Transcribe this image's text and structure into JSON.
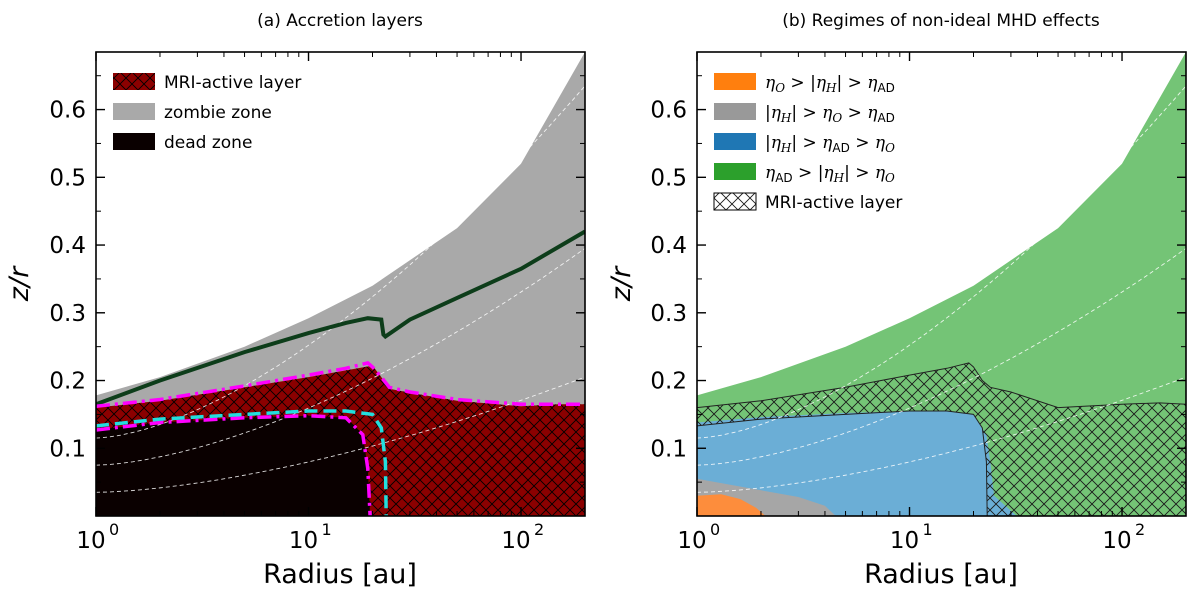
{
  "chart_data": [
    {
      "type": "area",
      "title": "(a) Accretion layers",
      "xlabel": "Radius [au]",
      "ylabel": "z/r",
      "xscale": "log",
      "xlim": [
        1,
        200
      ],
      "ylim": [
        0,
        0.685
      ],
      "x_ticks": [
        {
          "value": 1,
          "label": "10",
          "exp": "0"
        },
        {
          "value": 10,
          "label": "10",
          "exp": "1"
        },
        {
          "value": 100,
          "label": "10",
          "exp": "2"
        }
      ],
      "y_ticks": [
        {
          "value": 0.1,
          "label": "0.1"
        },
        {
          "value": 0.2,
          "label": "0.2"
        },
        {
          "value": 0.3,
          "label": "0.3"
        },
        {
          "value": 0.4,
          "label": "0.4"
        },
        {
          "value": 0.5,
          "label": "0.5"
        },
        {
          "value": 0.6,
          "label": "0.6"
        }
      ],
      "legend": {
        "position": "top-left",
        "entries": [
          {
            "label": "MRI-active layer",
            "color": "#8b0000",
            "hatch": true
          },
          {
            "label": "zombie zone",
            "color": "#a9a9a9"
          },
          {
            "label": "dead zone",
            "color": "#0a0000"
          }
        ]
      },
      "series": [
        {
          "name": "disk surface (grey zombie zone top)",
          "color": "#a9a9a9",
          "x": [
            1,
            2,
            5,
            10,
            20,
            50,
            100,
            200
          ],
          "y": [
            0.178,
            0.205,
            0.25,
            0.292,
            0.34,
            0.425,
            0.52,
            0.685
          ]
        },
        {
          "name": "MRI-active layer top",
          "color": "#8b0000",
          "x": [
            1,
            2,
            5,
            10,
            15,
            20,
            22,
            24,
            30,
            50,
            100,
            150,
            200
          ],
          "y": [
            0.16,
            0.17,
            0.19,
            0.205,
            0.215,
            0.222,
            0.205,
            0.188,
            0.182,
            0.17,
            0.162,
            0.165,
            0.165
          ]
        },
        {
          "name": "dead zone boundary",
          "color": "#0a0000",
          "x": [
            1,
            2,
            5,
            10,
            15,
            18,
            19,
            19.5
          ],
          "y": [
            0.127,
            0.138,
            0.145,
            0.148,
            0.145,
            0.12,
            0.07,
            0.0
          ]
        },
        {
          "name": "green boundary line",
          "color": "#0d3d1a",
          "x": [
            1,
            2,
            5,
            10,
            15,
            19,
            22,
            22.5,
            23,
            30,
            50,
            100,
            200
          ],
          "y": [
            0.165,
            0.2,
            0.242,
            0.27,
            0.285,
            0.292,
            0.29,
            0.268,
            0.265,
            0.29,
            0.322,
            0.365,
            0.42
          ]
        },
        {
          "name": "magenta dash-dot boundary (outer)",
          "color": "#ff00ff",
          "x": [
            1,
            2,
            5,
            10,
            15,
            19,
            20,
            22,
            24,
            30,
            50,
            100,
            200
          ],
          "y": [
            0.162,
            0.172,
            0.192,
            0.208,
            0.218,
            0.226,
            0.22,
            0.205,
            0.19,
            0.183,
            0.172,
            0.165,
            0.165
          ]
        },
        {
          "name": "magenta dash-dot boundary (inner)",
          "color": "#ff00ff",
          "x": [
            1,
            2,
            5,
            10,
            15,
            18,
            19,
            19.5
          ],
          "y": [
            0.127,
            0.138,
            0.145,
            0.148,
            0.145,
            0.12,
            0.07,
            0.0
          ]
        },
        {
          "name": "cyan dashed boundary",
          "color": "#22dede",
          "x": [
            1,
            2,
            5,
            10,
            15,
            20,
            22,
            23,
            23.2
          ],
          "y": [
            0.133,
            0.143,
            0.15,
            0.155,
            0.155,
            0.15,
            0.13,
            0.08,
            0.0
          ]
        }
      ]
    },
    {
      "type": "area",
      "title": "(b) Regimes of non-ideal MHD effects",
      "xlabel": "Radius [au]",
      "ylabel": "z/r",
      "xscale": "log",
      "xlim": [
        1,
        200
      ],
      "ylim": [
        0,
        0.685
      ],
      "x_ticks": [
        {
          "value": 1,
          "label": "10",
          "exp": "0"
        },
        {
          "value": 10,
          "label": "10",
          "exp": "1"
        },
        {
          "value": 100,
          "label": "10",
          "exp": "2"
        }
      ],
      "y_ticks": [
        {
          "value": 0.1,
          "label": "0.1"
        },
        {
          "value": 0.2,
          "label": "0.2"
        },
        {
          "value": 0.3,
          "label": "0.3"
        },
        {
          "value": 0.4,
          "label": "0.4"
        },
        {
          "value": 0.5,
          "label": "0.5"
        },
        {
          "value": 0.6,
          "label": "0.6"
        }
      ],
      "legend": {
        "position": "top-left",
        "entries": [
          {
            "color": "#ff7f0e",
            "parts": [
              {
                "t": "η",
                "m": true
              },
              {
                "t": "O",
                "sub": true,
                "m": true
              },
              {
                "t": " > |"
              },
              {
                "t": "η",
                "m": true
              },
              {
                "t": "H",
                "sub": true,
                "m": true
              },
              {
                "t": "| > "
              },
              {
                "t": "η",
                "m": true
              },
              {
                "t": "AD",
                "sub": true
              }
            ]
          },
          {
            "color": "#999999",
            "parts": [
              {
                "t": "|"
              },
              {
                "t": "η",
                "m": true
              },
              {
                "t": "H",
                "sub": true,
                "m": true
              },
              {
                "t": "| > "
              },
              {
                "t": "η",
                "m": true
              },
              {
                "t": "O",
                "sub": true,
                "m": true
              },
              {
                "t": " > "
              },
              {
                "t": "η",
                "m": true
              },
              {
                "t": "AD",
                "sub": true
              }
            ]
          },
          {
            "color": "#1f77b4",
            "parts": [
              {
                "t": "|"
              },
              {
                "t": "η",
                "m": true
              },
              {
                "t": "H",
                "sub": true,
                "m": true
              },
              {
                "t": "| > "
              },
              {
                "t": "η",
                "m": true
              },
              {
                "t": "AD",
                "sub": true
              },
              {
                "t": " > "
              },
              {
                "t": "η",
                "m": true
              },
              {
                "t": "O",
                "sub": true,
                "m": true
              }
            ]
          },
          {
            "color": "#2ca02c",
            "parts": [
              {
                "t": "η",
                "m": true
              },
              {
                "t": "AD",
                "sub": true
              },
              {
                "t": " > |"
              },
              {
                "t": "η",
                "m": true
              },
              {
                "t": "H",
                "sub": true,
                "m": true
              },
              {
                "t": "| > "
              },
              {
                "t": "η",
                "m": true
              },
              {
                "t": "O",
                "sub": true,
                "m": true
              }
            ]
          },
          {
            "color": "none",
            "hatch": true,
            "parts": [
              {
                "t": "MRI-active layer"
              }
            ]
          }
        ]
      },
      "series": [
        {
          "name": "green region (η_AD > |η_H| > η_O) top",
          "color": "#74c476",
          "x": [
            1,
            2,
            5,
            10,
            20,
            50,
            100,
            200
          ],
          "y": [
            0.178,
            0.205,
            0.25,
            0.292,
            0.34,
            0.425,
            0.52,
            0.685
          ]
        },
        {
          "name": "blue region (|η_H| > η_AD > η_O) boundary",
          "color": "#6baed6",
          "x": [
            1,
            2,
            5,
            10,
            15,
            20,
            23,
            24,
            25,
            32
          ],
          "y": [
            0.138,
            0.146,
            0.152,
            0.155,
            0.155,
            0.15,
            0.12,
            0.08,
            0.03,
            0.0
          ]
        },
        {
          "name": "grey region (|η_H| > η_O > η_AD) boundary",
          "color": "#a6a6a6",
          "x": [
            1,
            1.5,
            2,
            3,
            4,
            4.5
          ],
          "y": [
            0.055,
            0.045,
            0.038,
            0.028,
            0.015,
            0.0
          ]
        },
        {
          "name": "orange region (η_O > |η_H| > η_AD) boundary",
          "color": "#fd8d3c",
          "x": [
            1,
            1.3,
            1.6,
            1.9,
            2.1
          ],
          "y": [
            0.03,
            0.032,
            0.025,
            0.012,
            0.0
          ]
        },
        {
          "name": "MRI-active layer top (hatched)",
          "color": "#000000",
          "x": [
            1,
            2,
            5,
            10,
            15,
            19,
            20,
            22,
            24,
            30,
            50,
            100,
            150,
            200
          ],
          "y": [
            0.16,
            0.17,
            0.19,
            0.208,
            0.218,
            0.226,
            0.22,
            0.2,
            0.19,
            0.183,
            0.16,
            0.165,
            0.167,
            0.165
          ]
        },
        {
          "name": "MRI-active layer bottom",
          "color": "#000000",
          "x": [
            1,
            2,
            5,
            10,
            15,
            20,
            22,
            23,
            23.2
          ],
          "y": [
            0.133,
            0.143,
            0.15,
            0.155,
            0.155,
            0.15,
            0.13,
            0.08,
            0.0
          ]
        }
      ]
    }
  ]
}
